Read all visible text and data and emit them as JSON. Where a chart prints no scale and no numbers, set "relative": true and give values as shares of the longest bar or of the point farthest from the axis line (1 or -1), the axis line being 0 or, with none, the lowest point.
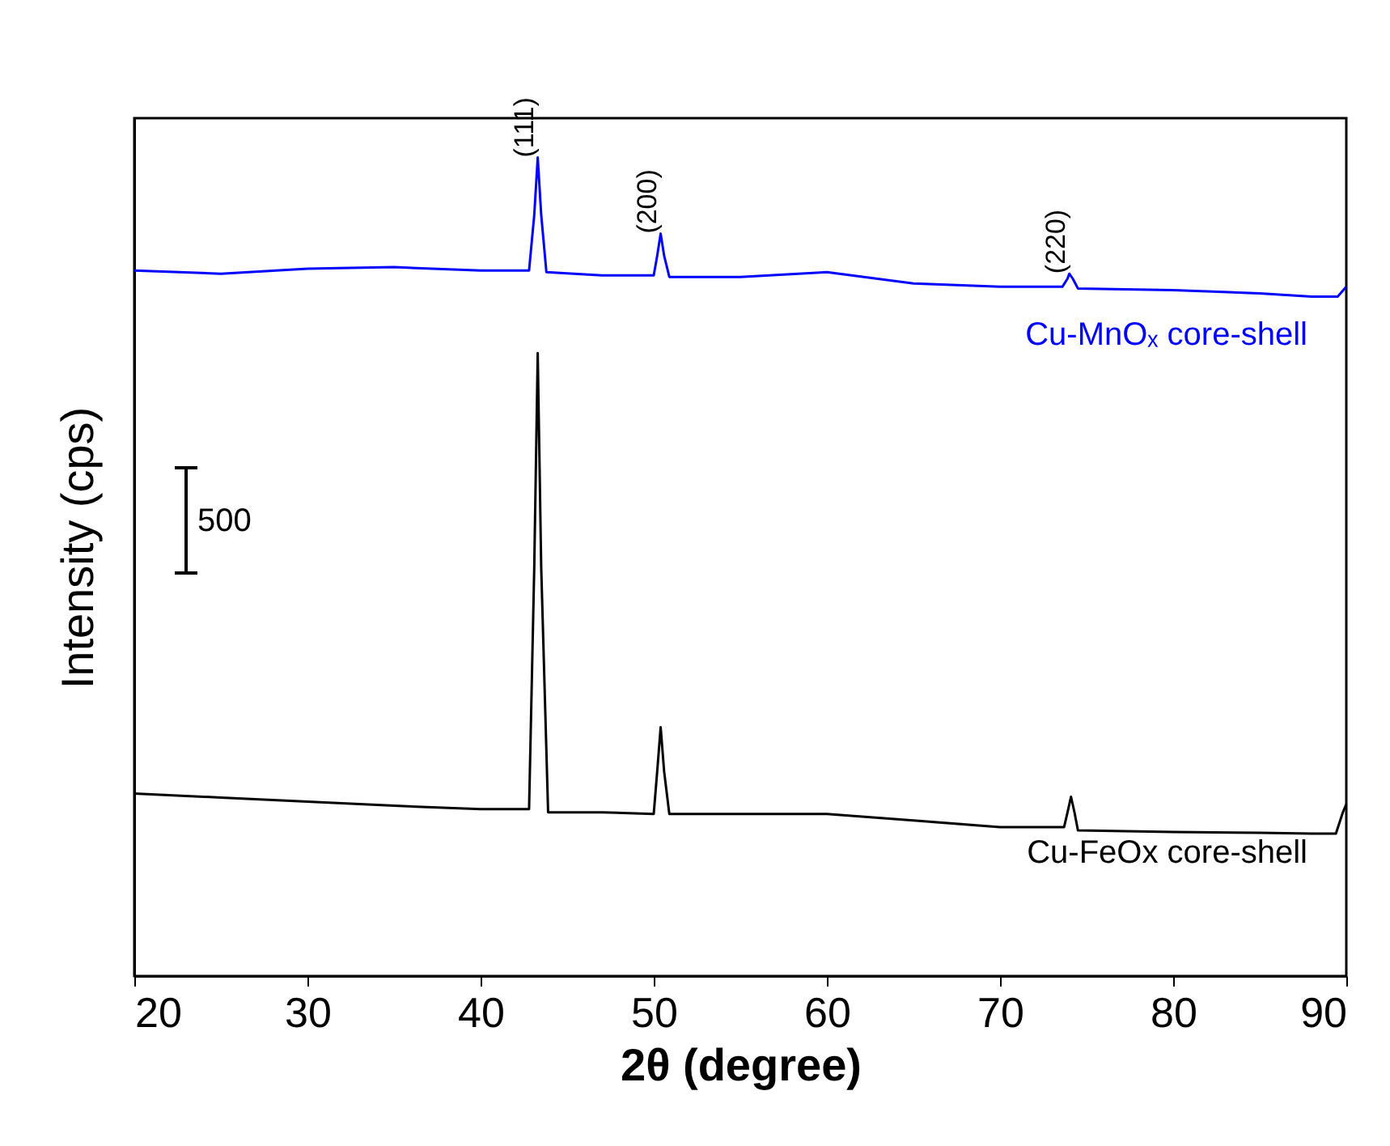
{
  "chart_data": {
    "type": "line",
    "relative": true,
    "xlabel": "2θ (degree)",
    "ylabel": "Intensity (cps)",
    "xlim": [
      20,
      90
    ],
    "xticks": [
      20,
      30,
      40,
      50,
      60,
      70,
      80,
      90
    ],
    "marker": "none",
    "line_style": "solid",
    "series": [
      {
        "name": "Cu-MnOₓ core-shell",
        "color": "#0000ff",
        "x": [
          20,
          25,
          30,
          35,
          40,
          42.8,
          43.1,
          43.3,
          43.5,
          43.8,
          47,
          50.0,
          50.2,
          50.4,
          50.6,
          50.9,
          55,
          60,
          65,
          70,
          73.6,
          73.9,
          74.0,
          74.2,
          74.5,
          80,
          85,
          88,
          89.5,
          90
        ],
        "values": [
          0.862,
          0.858,
          0.864,
          0.866,
          0.862,
          0.862,
          0.93,
          1.0,
          0.93,
          0.86,
          0.856,
          0.856,
          0.88,
          0.907,
          0.88,
          0.854,
          0.854,
          0.86,
          0.846,
          0.842,
          0.842,
          0.852,
          0.858,
          0.852,
          0.84,
          0.838,
          0.834,
          0.83,
          0.83,
          0.842
        ]
      },
      {
        "name": "Cu-FeOx core-shell",
        "color": "#000000",
        "x": [
          20,
          25,
          30,
          35,
          40,
          42.8,
          43.1,
          43.3,
          43.5,
          43.9,
          47,
          50.0,
          50.2,
          50.4,
          50.6,
          50.9,
          55,
          60,
          65,
          70,
          73.7,
          73.9,
          74.1,
          74.3,
          74.5,
          80,
          85,
          88,
          89.4,
          89.8,
          90
        ],
        "values": [
          0.223,
          0.218,
          0.213,
          0.208,
          0.204,
          0.204,
          0.5,
          0.761,
          0.5,
          0.2,
          0.2,
          0.198,
          0.25,
          0.304,
          0.25,
          0.198,
          0.198,
          0.198,
          0.19,
          0.182,
          0.182,
          0.2,
          0.219,
          0.2,
          0.178,
          0.176,
          0.175,
          0.174,
          0.174,
          0.2,
          0.21
        ]
      }
    ],
    "annotations": [
      {
        "text": "(111)",
        "x": 43.3,
        "y": 1.0
      },
      {
        "text": "(200)",
        "x": 50.4,
        "y": 0.907
      },
      {
        "text": "(220)",
        "x": 74.0,
        "y": 0.858
      },
      "500"
    ]
  }
}
